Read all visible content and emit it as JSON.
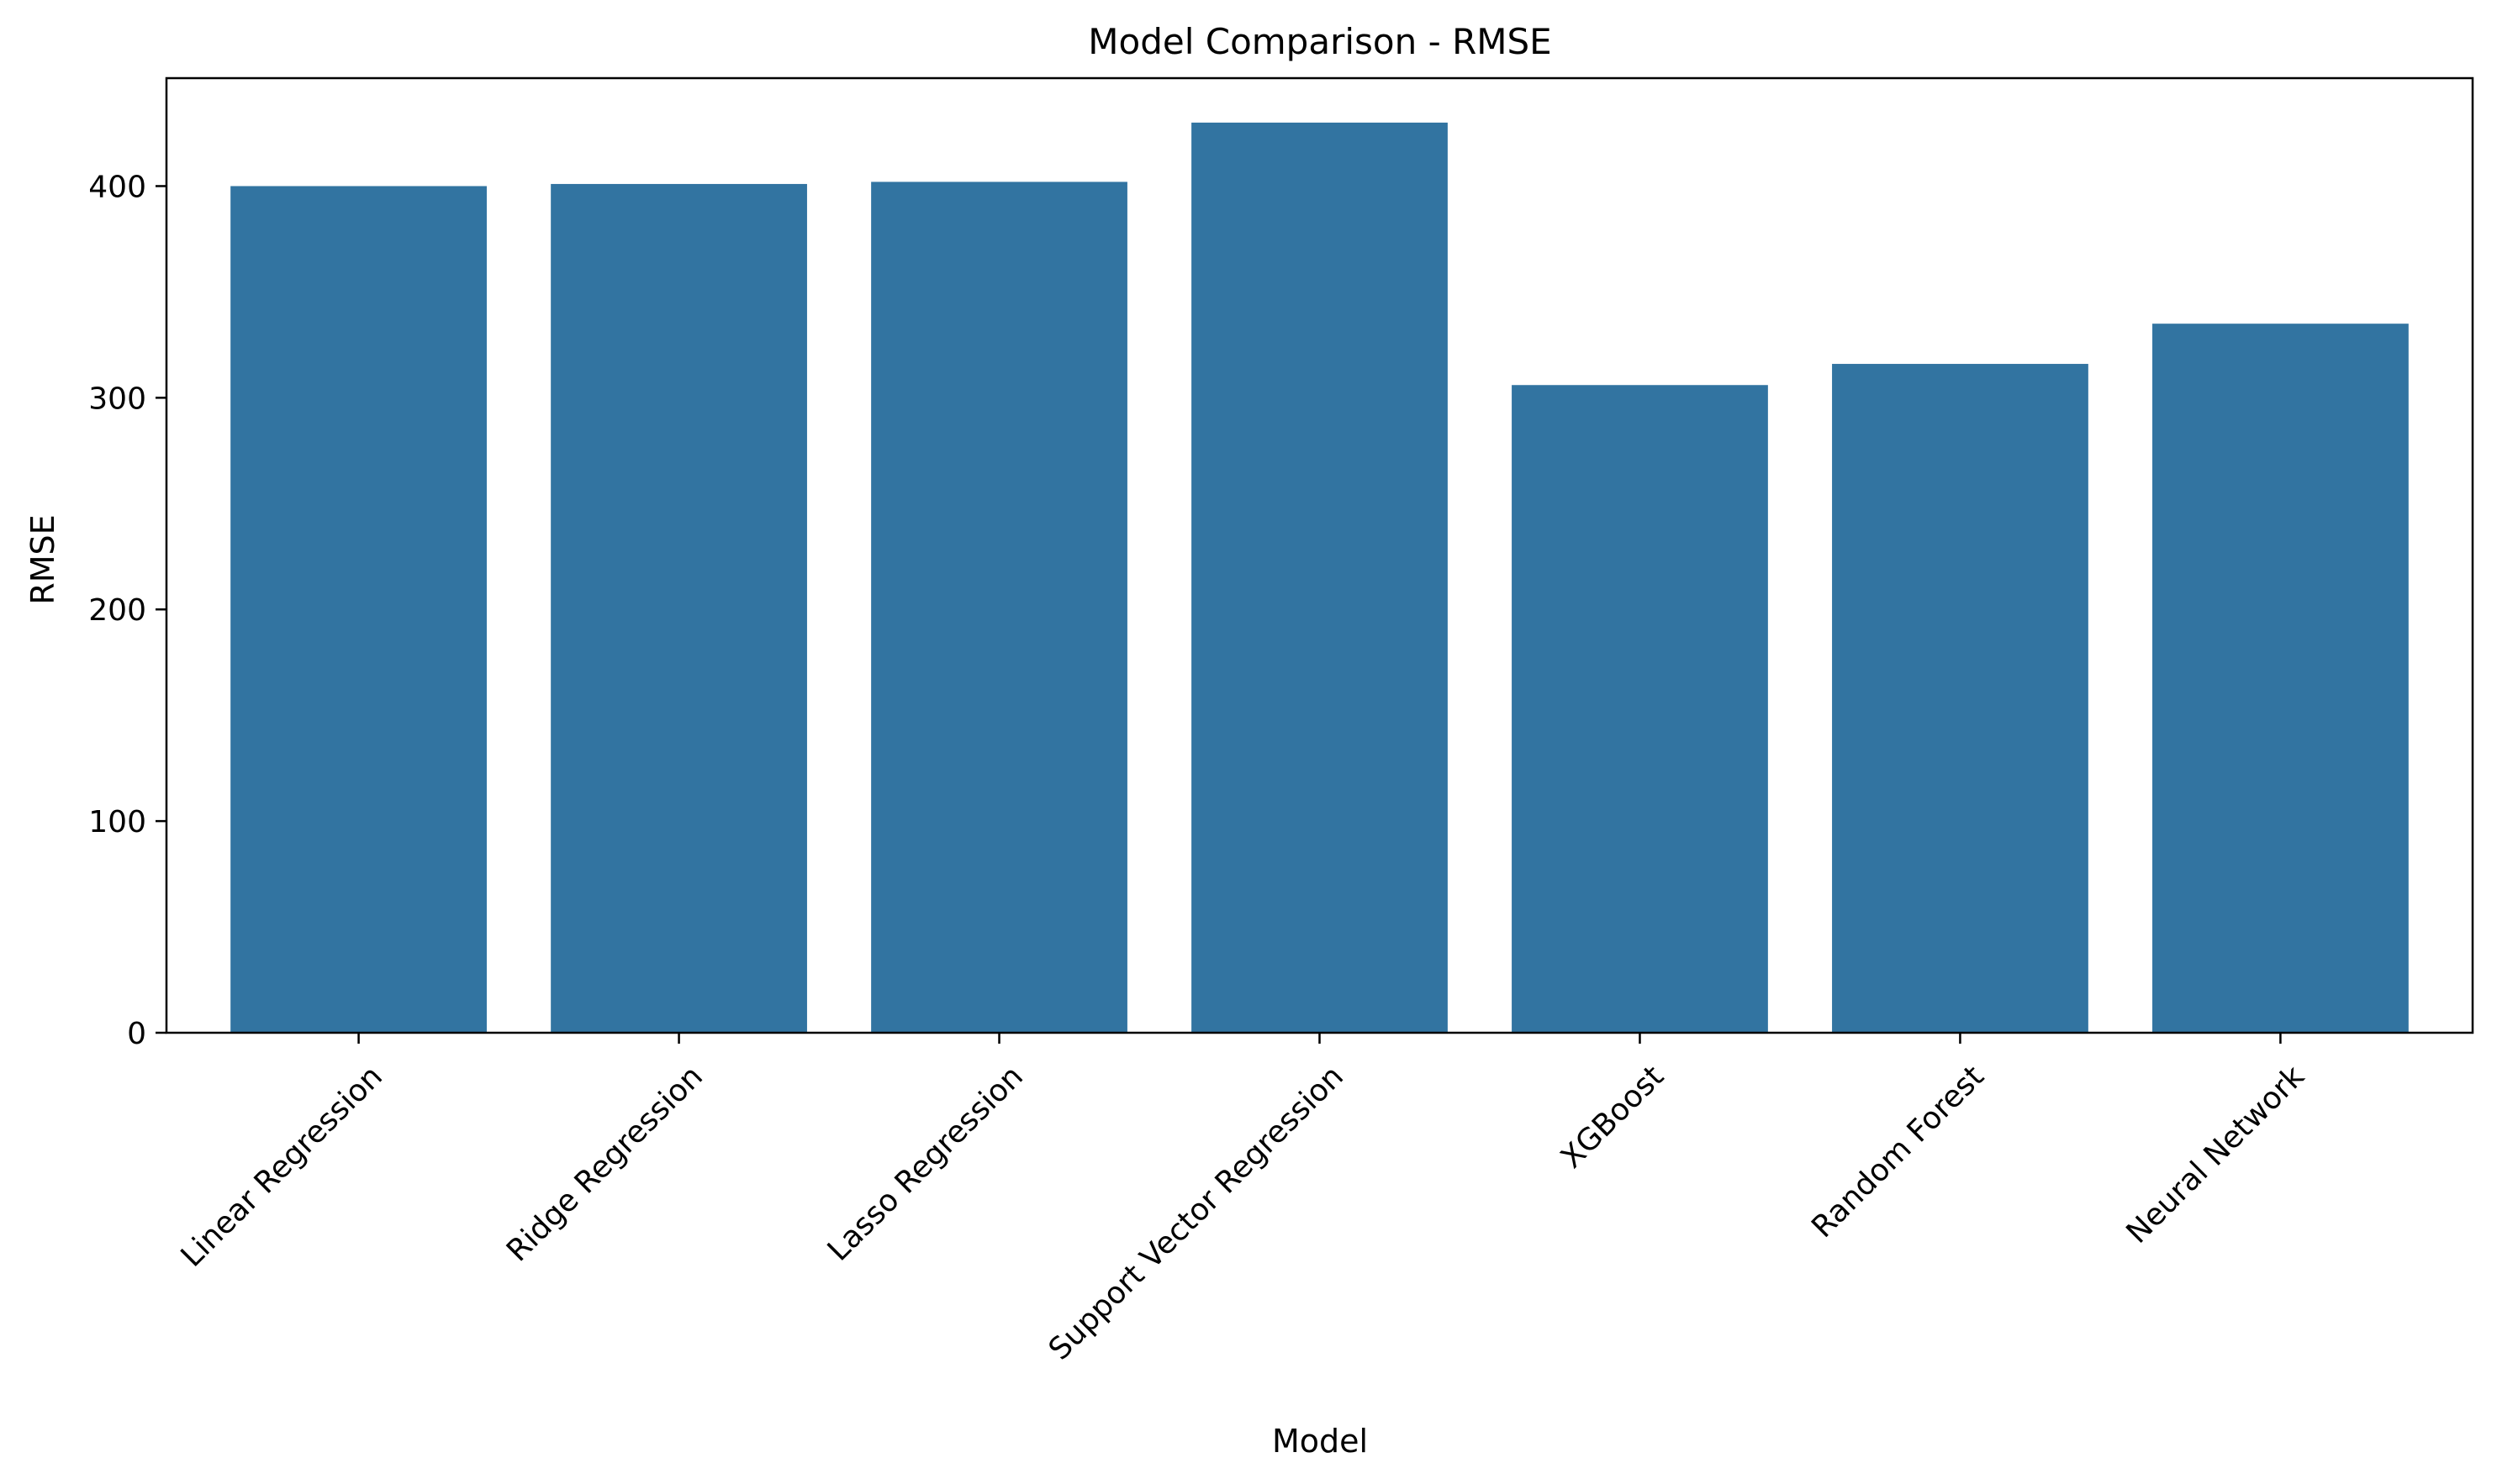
{
  "chart_data": {
    "type": "bar",
    "title": "Model Comparison - RMSE",
    "xlabel": "Model",
    "ylabel": "RMSE",
    "categories": [
      "Linear Regression",
      "Ridge Regression",
      "Lasso Regression",
      "Support Vector Regression",
      "XGBoost",
      "Random Forest",
      "Neural Network"
    ],
    "values": [
      400,
      401,
      402,
      430,
      306,
      316,
      335
    ],
    "ylim": [
      0,
      451
    ],
    "yticks": [
      "0",
      "100",
      "200",
      "300",
      "400"
    ],
    "grid": false,
    "legend": "none",
    "bar_color": "#3274a1"
  }
}
